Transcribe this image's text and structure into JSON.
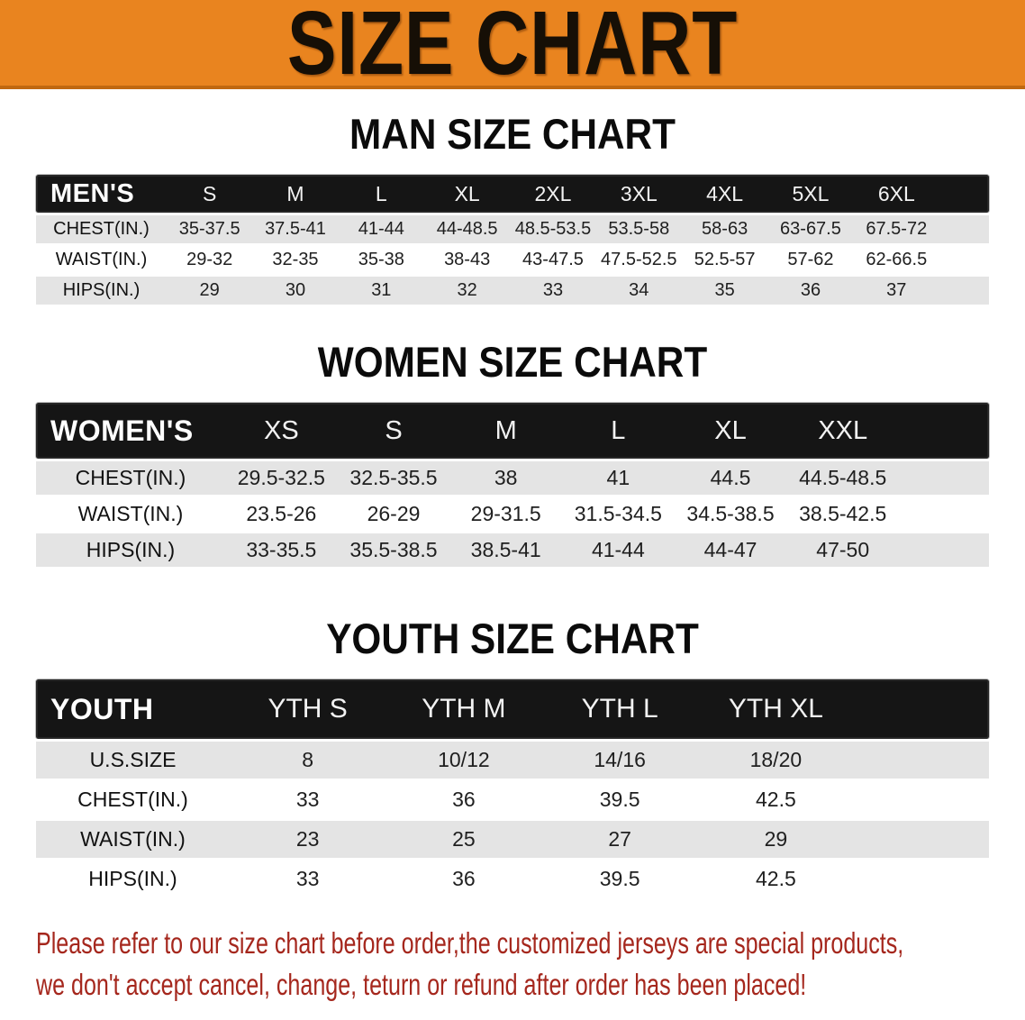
{
  "banner": {
    "title": "SIZE CHART",
    "bg_color": "#E9841F",
    "text_color": "#160f06"
  },
  "colors": {
    "accent_orange": "#E9841F",
    "table_header_black": "#151515",
    "row_stripe_gray": "#e4e4e4",
    "disclaimer_red": "#A5271D"
  },
  "chart_data": [
    {
      "type": "table",
      "title": "MAN SIZE CHART",
      "header": [
        "MEN'S",
        "S",
        "M",
        "L",
        "XL",
        "2XL",
        "3XL",
        "4XL",
        "5XL",
        "6XL"
      ],
      "rows": [
        [
          "CHEST(IN.)",
          "35-37.5",
          "37.5-41",
          "41-44",
          "44-48.5",
          "48.5-53.5",
          "53.5-58",
          "58-63",
          "63-67.5",
          "67.5-72"
        ],
        [
          "WAIST(IN.)",
          "29-32",
          "32-35",
          "35-38",
          "38-43",
          "43-47.5",
          "47.5-52.5",
          "52.5-57",
          "57-62",
          "62-66.5"
        ],
        [
          "HIPS(IN.)",
          "29",
          "30",
          "31",
          "32",
          "33",
          "34",
          "35",
          "36",
          "37"
        ]
      ]
    },
    {
      "type": "table",
      "title": "WOMEN SIZE CHART",
      "header": [
        "WOMEN'S",
        "XS",
        "S",
        "M",
        "L",
        "XL",
        "XXL"
      ],
      "rows": [
        [
          "CHEST(IN.)",
          "29.5-32.5",
          "32.5-35.5",
          "38",
          "41",
          "44.5",
          "44.5-48.5"
        ],
        [
          "WAIST(IN.)",
          "23.5-26",
          "26-29",
          "29-31.5",
          "31.5-34.5",
          "34.5-38.5",
          "38.5-42.5"
        ],
        [
          "HIPS(IN.)",
          "33-35.5",
          "35.5-38.5",
          "38.5-41",
          "41-44",
          "44-47",
          "47-50"
        ]
      ]
    },
    {
      "type": "table",
      "title": "YOUTH SIZE CHART",
      "header": [
        "YOUTH",
        "YTH S",
        "YTH M",
        "YTH L",
        "YTH XL"
      ],
      "rows": [
        [
          "U.S.SIZE",
          "8",
          "10/12",
          "14/16",
          "18/20"
        ],
        [
          "CHEST(IN.)",
          "33",
          "36",
          "39.5",
          "42.5"
        ],
        [
          "WAIST(IN.)",
          "23",
          "25",
          "27",
          "29"
        ],
        [
          "HIPS(IN.)",
          "33",
          "36",
          "39.5",
          "42.5"
        ]
      ]
    }
  ],
  "disclaimer": {
    "line1": "Please refer to our size chart before order,the customized jerseys are special products,",
    "line2": "we don't accept cancel, change, teturn or refund after order has been placed!"
  }
}
